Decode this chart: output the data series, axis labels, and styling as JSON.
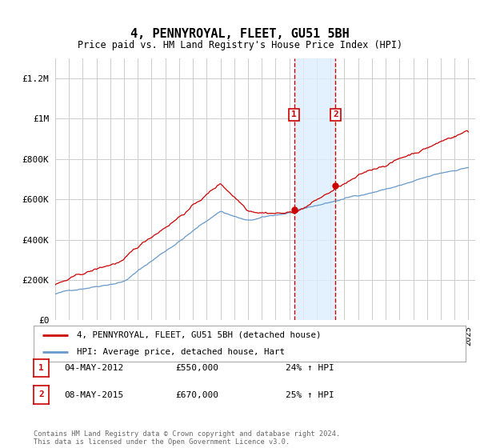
{
  "title": "4, PENNYROYAL, FLEET, GU51 5BH",
  "subtitle": "Price paid vs. HM Land Registry's House Price Index (HPI)",
  "ylim": [
    0,
    1300000
  ],
  "yticks": [
    0,
    200000,
    400000,
    600000,
    800000,
    1000000,
    1200000
  ],
  "ytick_labels": [
    "£0",
    "£200K",
    "£400K",
    "£600K",
    "£800K",
    "£1M",
    "£1.2M"
  ],
  "xstart_year": 1995,
  "xend_year": 2025,
  "sale1_date": 2012.35,
  "sale1_price": 550000,
  "sale1_label": "1",
  "sale1_date_text": "04-MAY-2012",
  "sale1_price_text": "£550,000",
  "sale1_hpi_text": "24% ↑ HPI",
  "sale2_date": 2015.36,
  "sale2_price": 670000,
  "sale2_label": "2",
  "sale2_date_text": "08-MAY-2015",
  "sale2_price_text": "£670,000",
  "sale2_hpi_text": "25% ↑ HPI",
  "legend1": "4, PENNYROYAL, FLEET, GU51 5BH (detached house)",
  "legend2": "HPI: Average price, detached house, Hart",
  "footer": "Contains HM Land Registry data © Crown copyright and database right 2024.\nThis data is licensed under the Open Government Licence v3.0.",
  "line_color_red": "#cc0000",
  "line_color_blue": "#6699cc",
  "shade_color": "#ddeeff",
  "vline_color": "#cc0000",
  "grid_color": "#cccccc",
  "bg_color": "#ffffff"
}
